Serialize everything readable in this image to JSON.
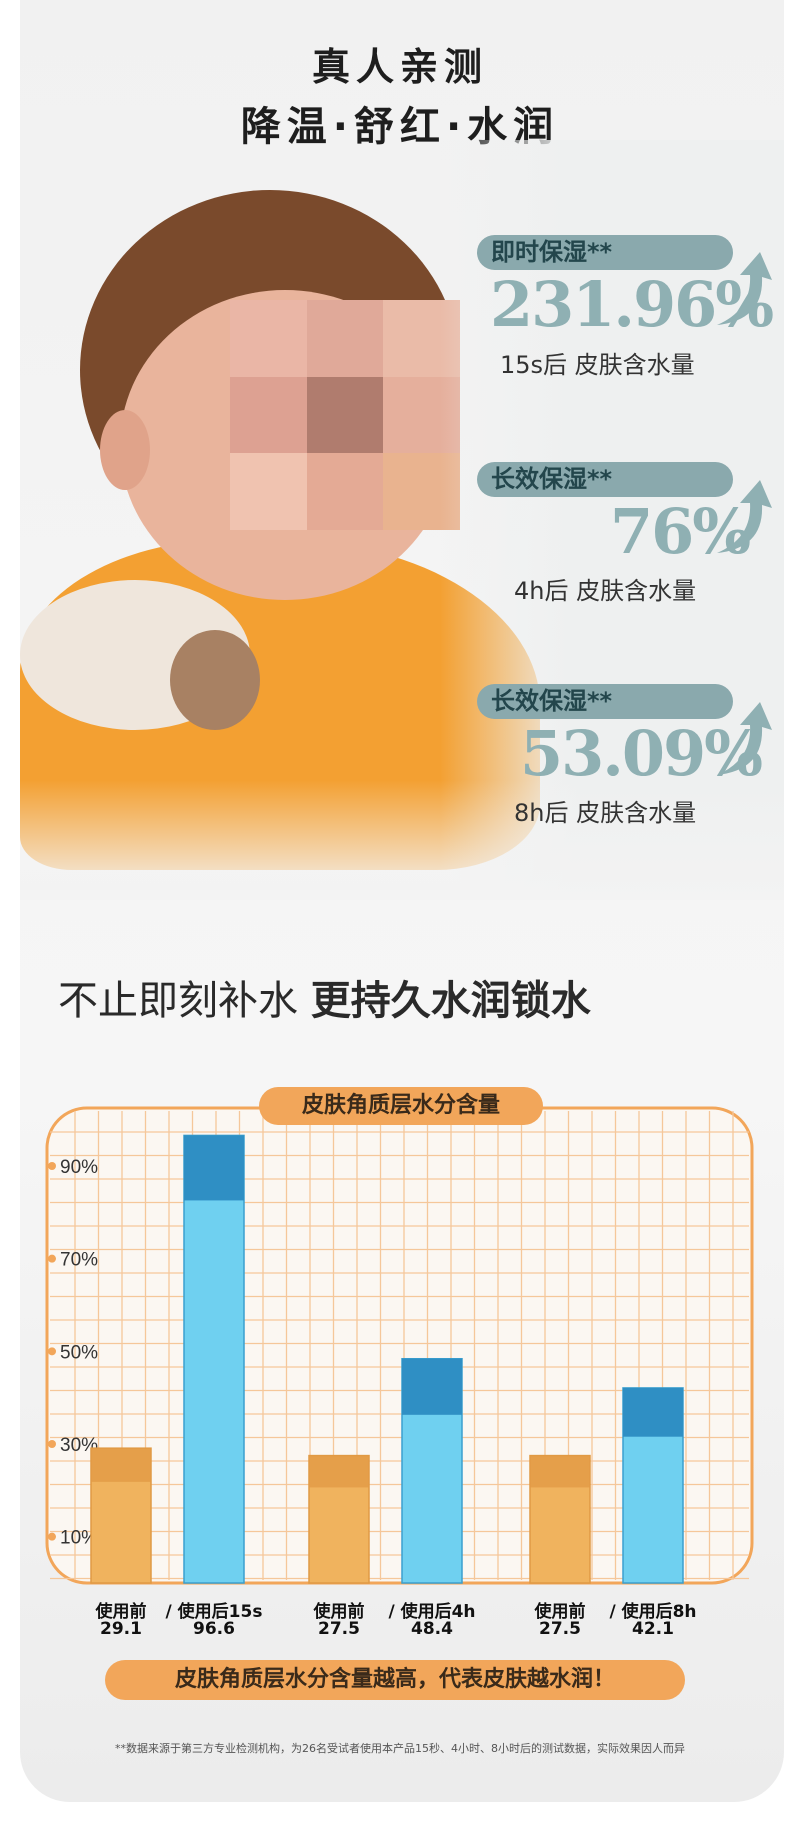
{
  "header": {
    "line1": "真人亲测",
    "line2": "降温·舒红·水润"
  },
  "stats": [
    {
      "badge": "即时保湿**",
      "value": "231.96%",
      "caption": "15s后 皮肤含水量"
    },
    {
      "badge": "长效保湿**",
      "value": "76%",
      "caption": "4h后 皮肤含水量"
    },
    {
      "badge": "长效保湿**",
      "value": "53.09%",
      "caption": "8h后 皮肤含水量"
    }
  ],
  "headline": {
    "light": "不止即刻补水",
    "bold": "更持久水润锁水"
  },
  "chart_data": {
    "type": "bar",
    "title": "皮肤角质层水分含量",
    "yticks": [
      "90%",
      "70%",
      "50%",
      "30%",
      "10%"
    ],
    "ylim": [
      0,
      100
    ],
    "grid": true,
    "categories": [
      "使用前",
      "/ 使用后15s",
      "使用前",
      "/ 使用后4h",
      "使用前",
      "/ 使用后8h"
    ],
    "values": [
      29.1,
      96.6,
      27.5,
      48.4,
      27.5,
      42.1
    ],
    "value_labels": [
      "29.1",
      "96.6",
      "27.5",
      "48.4",
      "27.5",
      "42.1"
    ],
    "colors": {
      "before": "#f0b35e",
      "after": "#6fd0f0",
      "frame": "#f2a65a"
    }
  },
  "note": "皮肤角质层水分含量越高，代表皮肤越水润！",
  "footnote": "**数据来源于第三方专业检测机构，为26名受试者使用本产品15秒、4小时、8小时后的测试数据，实际效果因人而异"
}
